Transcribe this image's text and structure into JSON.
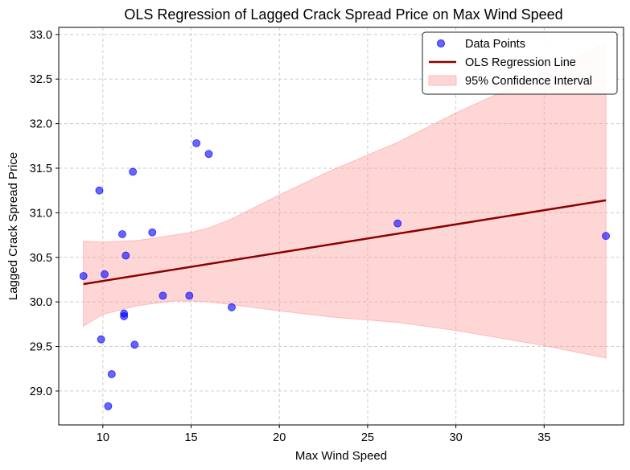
{
  "chart_data": {
    "type": "scatter",
    "title": "OLS Regression of Lagged Crack Spread Price on Max Wind Speed",
    "xlabel": "Max Wind Speed",
    "ylabel": "Lagged Crack Spread Price",
    "xlim": [
      7.5,
      39.5
    ],
    "ylim": [
      28.62,
      33.08
    ],
    "xticks": [
      10,
      15,
      20,
      25,
      30,
      35
    ],
    "yticks": [
      29.0,
      29.5,
      30.0,
      30.5,
      31.0,
      31.5,
      32.0,
      32.5,
      33.0
    ],
    "xtick_labels": [
      "10",
      "15",
      "20",
      "25",
      "30",
      "35"
    ],
    "ytick_labels": [
      "29.0",
      "29.5",
      "30.0",
      "30.5",
      "31.0",
      "31.5",
      "32.0",
      "32.5",
      "33.0"
    ],
    "grid": true,
    "legend_position": "top-right",
    "colors": {
      "points": "#0000ff",
      "regression_line": "#8b0000",
      "confidence_fill": "#ff9999",
      "grid": "#cccccc"
    },
    "series": [
      {
        "name": "Data Points",
        "kind": "scatter",
        "points": [
          [
            8.9,
            30.29
          ],
          [
            9.8,
            31.25
          ],
          [
            9.9,
            29.58
          ],
          [
            10.1,
            30.31
          ],
          [
            10.3,
            28.83
          ],
          [
            10.5,
            29.19
          ],
          [
            11.1,
            30.76
          ],
          [
            11.2,
            29.84
          ],
          [
            11.2,
            29.87
          ],
          [
            11.3,
            30.52
          ],
          [
            11.7,
            31.46
          ],
          [
            11.8,
            29.52
          ],
          [
            12.8,
            30.78
          ],
          [
            13.4,
            30.07
          ],
          [
            14.9,
            30.07
          ],
          [
            15.3,
            31.78
          ],
          [
            16.0,
            31.66
          ],
          [
            17.3,
            29.94
          ],
          [
            26.7,
            30.88
          ],
          [
            38.5,
            30.74
          ]
        ]
      },
      {
        "name": "OLS Regression Line",
        "kind": "line",
        "x": [
          8.9,
          38.5
        ],
        "y": [
          30.2,
          31.14
        ]
      },
      {
        "name": "95% Confidence Interval",
        "kind": "band",
        "x": [
          8.9,
          10,
          12,
          14,
          15,
          16,
          17.3,
          20,
          23,
          26.7,
          30,
          35,
          38.5
        ],
        "lower": [
          29.73,
          29.86,
          29.96,
          30.01,
          30.01,
          30.0,
          29.97,
          29.9,
          29.83,
          29.77,
          29.68,
          29.51,
          29.37
        ],
        "upper": [
          30.68,
          30.67,
          30.69,
          30.75,
          30.78,
          30.83,
          30.93,
          31.2,
          31.48,
          31.79,
          32.12,
          32.57,
          32.9
        ]
      }
    ]
  }
}
